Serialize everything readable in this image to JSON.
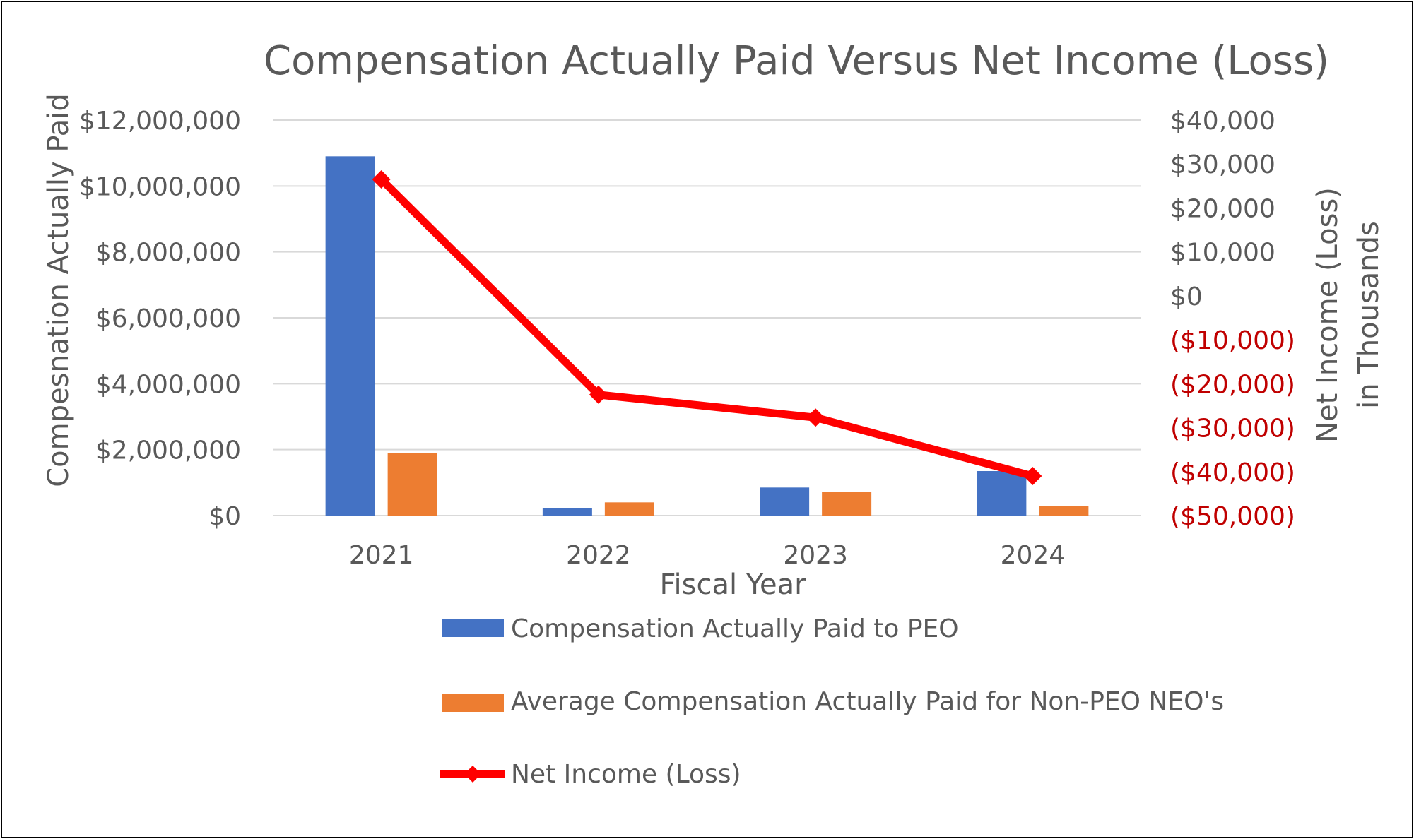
{
  "chart_data": {
    "type": "bar",
    "title": "Compensation Actually Paid Versus Net Income (Loss)",
    "xlabel": "Fiscal Year",
    "ylabel": "Compesnation Actually Paid",
    "y2label_lines": [
      "Net Income (Loss)",
      "in Thousands"
    ],
    "categories": [
      "2021",
      "2022",
      "2023",
      "2024"
    ],
    "ylim": [
      0,
      12000000
    ],
    "y_ticks": [
      0,
      2000000,
      4000000,
      6000000,
      8000000,
      10000000,
      12000000
    ],
    "y_tick_labels": [
      "$0",
      "$2,000,000",
      "$4,000,000",
      "$6,000,000",
      "$8,000,000",
      "$10,000,000",
      "$12,000,000"
    ],
    "y2lim": [
      -50000,
      40000
    ],
    "y2_ticks": [
      -50000,
      -40000,
      -30000,
      -20000,
      -10000,
      0,
      10000,
      20000,
      30000,
      40000
    ],
    "y2_tick_labels": [
      "($50,000)",
      "($40,000)",
      "($30,000)",
      "($20,000)",
      "($10,000)",
      "$0",
      "$10,000",
      "$20,000",
      "$30,000",
      "$40,000"
    ],
    "series": [
      {
        "name": "Compensation Actually Paid to PEO",
        "kind": "bar",
        "axis": "left",
        "color": "#4472C4",
        "values": [
          10900000,
          230000,
          850000,
          1350000
        ]
      },
      {
        "name": "Average Compensation Actually Paid for Non-PEO NEO's",
        "kind": "bar",
        "axis": "left",
        "color": "#ED7D31",
        "values": [
          1900000,
          400000,
          720000,
          290000
        ]
      },
      {
        "name": "Net Income (Loss)",
        "kind": "line",
        "axis": "right",
        "color": "#FF0000",
        "marker": "diamond",
        "values": [
          26500,
          -22500,
          -27700,
          -41000
        ]
      }
    ],
    "colors": {
      "axis_text": "#595959",
      "negative_tick": "#C00000",
      "grid": "#D9D9D9"
    },
    "grid": true,
    "legend_position": "bottom"
  }
}
